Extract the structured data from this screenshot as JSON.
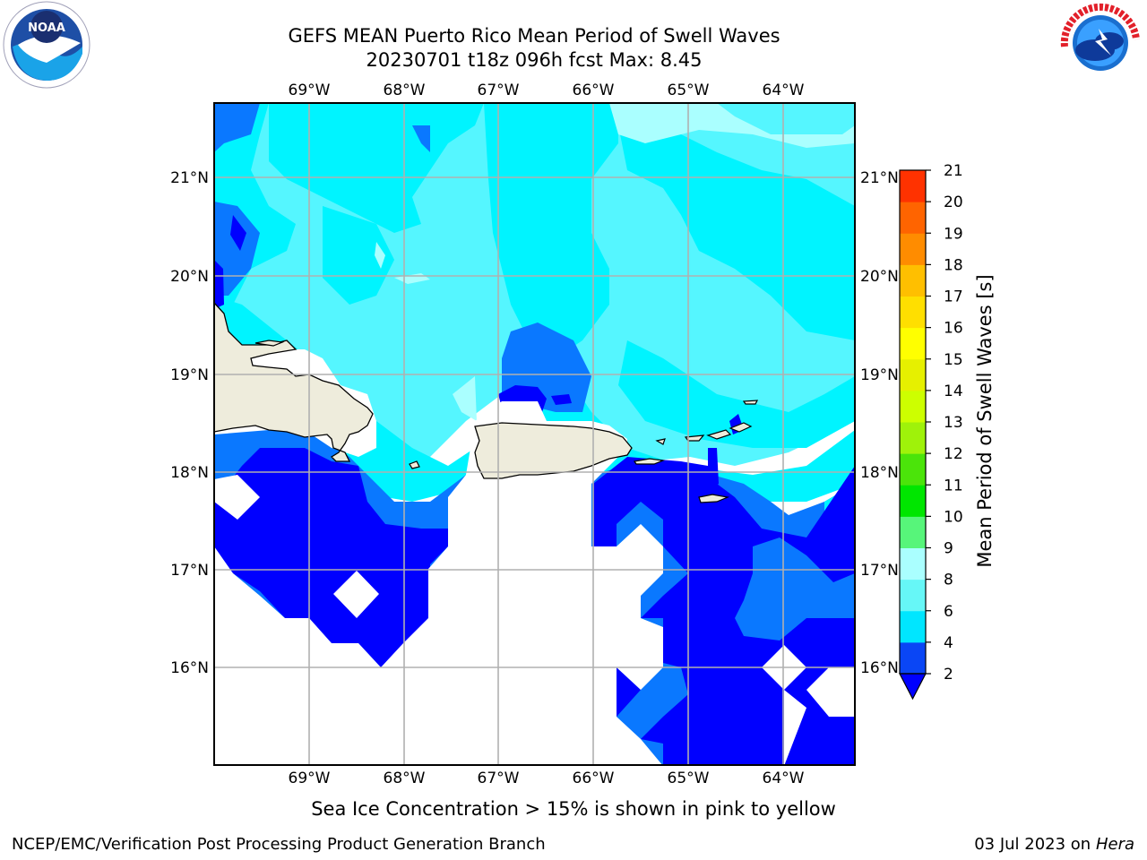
{
  "header": {
    "title_line1": "GEFS MEAN Puerto Rico Mean Period of Swell Waves",
    "title_line2": "20230701 t18z 096h fcst   Max: 8.45",
    "left_logo": "noara-logo",
    "right_logo": "national-weather-service-logo"
  },
  "map": {
    "lon_labels": [
      "69°W",
      "68°W",
      "67°W",
      "66°W",
      "65°W",
      "64°W"
    ],
    "lat_labels": [
      "21°N",
      "20°N",
      "19°N",
      "18°N",
      "17°N",
      "16°N"
    ],
    "land_color": "#eeecdc",
    "region": "Puerto Rico"
  },
  "colorbar": {
    "label": "Mean Period of Swell Waves [s]",
    "ticks": [
      "2",
      "4",
      "6",
      "8",
      "9",
      "10",
      "11",
      "12",
      "13",
      "14",
      "15",
      "16",
      "17",
      "18",
      "19",
      "20",
      "21"
    ],
    "colors": [
      "#0a46f5",
      "#00e6ff",
      "#66f7f7",
      "#aaffff",
      "#57f57a",
      "#00e600",
      "#4be40a",
      "#9ff20a",
      "#cdff00",
      "#e6f000",
      "#ffff00",
      "#ffdf00",
      "#ffbf00",
      "#ff8c00",
      "#ff6400",
      "#ff3200",
      "#ff0000"
    ],
    "extend_color": "#0000ff"
  },
  "palette": {
    "c2": "#0000ff",
    "c4": "#0a78ff",
    "c6": "#00f4ff",
    "c8": "#55f6ff",
    "c9": "#aaffff"
  },
  "footer": {
    "ice_note": "Sea Ice Concentration > 15% is shown in pink to yellow",
    "credit": "NCEP/EMC/Verification Post Processing Product Generation Branch",
    "date": "03 Jul 2023 on",
    "machine": "Hera"
  }
}
